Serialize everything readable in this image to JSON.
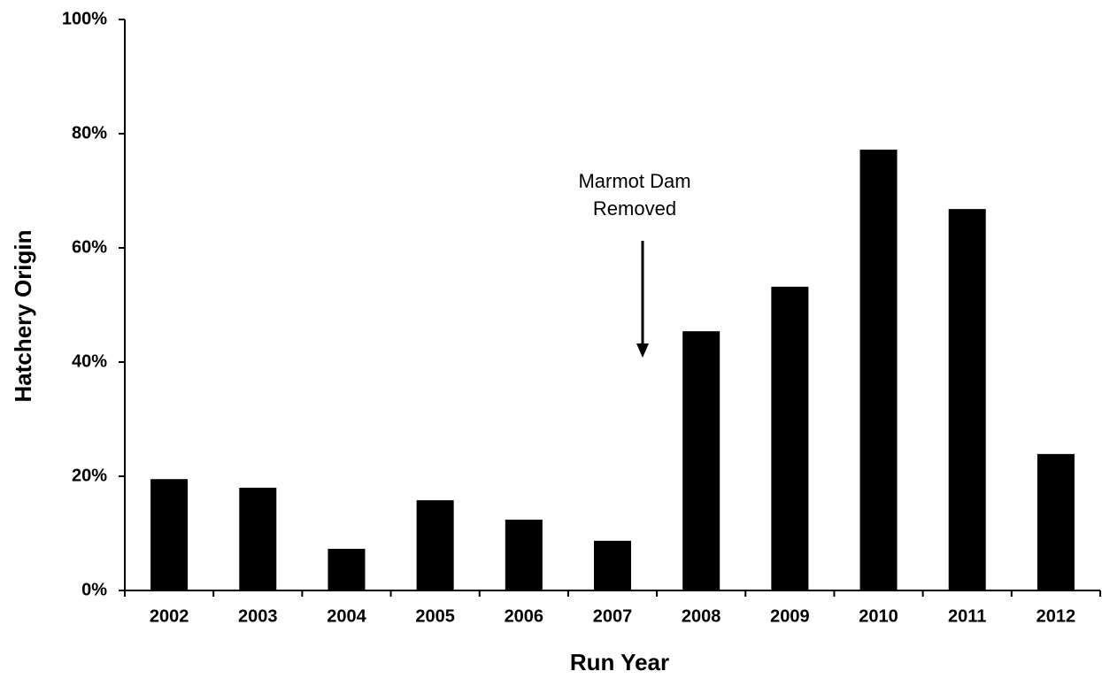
{
  "chart_data": {
    "type": "bar",
    "categories": [
      "2002",
      "2003",
      "2004",
      "2005",
      "2006",
      "2007",
      "2008",
      "2009",
      "2010",
      "2011",
      "2012"
    ],
    "values": [
      19.5,
      18.0,
      7.3,
      15.8,
      12.4,
      8.7,
      45.4,
      53.2,
      77.2,
      66.8,
      23.9
    ],
    "color": "#000000",
    "xlabel": "Run Year",
    "ylabel": "Hatchery Origin",
    "ylim": [
      0,
      100
    ],
    "yticks": [
      {
        "value": 0,
        "label": "0%"
      },
      {
        "value": 20,
        "label": "20%"
      },
      {
        "value": 40,
        "label": "40%"
      },
      {
        "value": 60,
        "label": "60%"
      },
      {
        "value": 80,
        "label": "80%"
      },
      {
        "value": 100,
        "label": "100%"
      }
    ],
    "annotation": [
      "Marmot Dam",
      "Removed"
    ]
  }
}
